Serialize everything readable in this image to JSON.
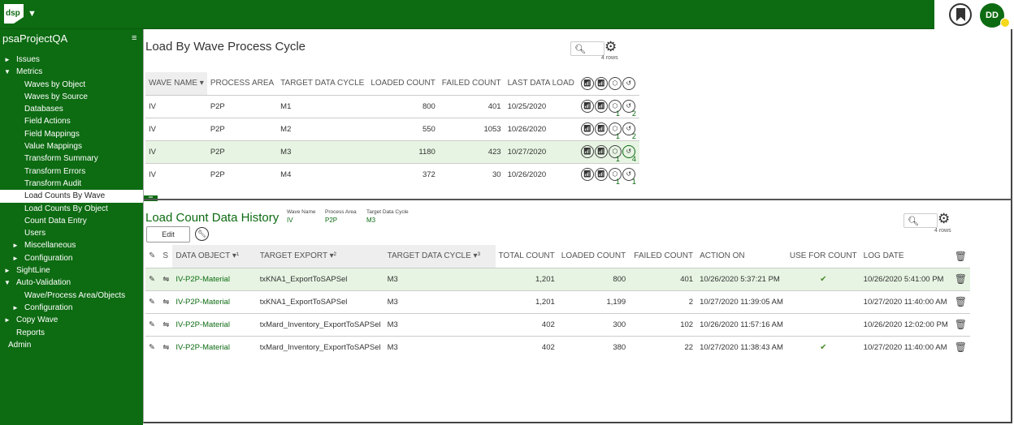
{
  "app": {
    "logo_text": "dsp",
    "user_initials": "DD"
  },
  "sidebar": {
    "project": "psaProjectQA",
    "items": [
      {
        "label": "Issues",
        "indent": 0,
        "arrow": "►"
      },
      {
        "label": "Metrics",
        "indent": 0,
        "arrow": "▼"
      },
      {
        "label": "Waves by Object",
        "indent": 2,
        "arrow": ""
      },
      {
        "label": "Waves by Source",
        "indent": 2,
        "arrow": ""
      },
      {
        "label": "Databases",
        "indent": 2,
        "arrow": ""
      },
      {
        "label": "Field Actions",
        "indent": 2,
        "arrow": ""
      },
      {
        "label": "Field Mappings",
        "indent": 2,
        "arrow": ""
      },
      {
        "label": "Value Mappings",
        "indent": 2,
        "arrow": ""
      },
      {
        "label": "Transform Summary",
        "indent": 2,
        "arrow": ""
      },
      {
        "label": "Transform Errors",
        "indent": 2,
        "arrow": ""
      },
      {
        "label": "Transform Audit",
        "indent": 2,
        "arrow": ""
      },
      {
        "label": "Load Counts By Wave",
        "indent": 2,
        "arrow": "",
        "active": true
      },
      {
        "label": "Load Counts By Object",
        "indent": 2,
        "arrow": ""
      },
      {
        "label": "Count Data Entry",
        "indent": 2,
        "arrow": ""
      },
      {
        "label": "Users",
        "indent": 2,
        "arrow": ""
      },
      {
        "label": "Miscellaneous",
        "indent": 1,
        "arrow": "►"
      },
      {
        "label": "Configuration",
        "indent": 1,
        "arrow": "►"
      },
      {
        "label": "SightLine",
        "indent": 0,
        "arrow": "►"
      },
      {
        "label": "Auto-Validation",
        "indent": 0,
        "arrow": "▼"
      },
      {
        "label": "Wave/Process Area/Objects",
        "indent": 2,
        "arrow": ""
      },
      {
        "label": "Configuration",
        "indent": 1,
        "arrow": "►"
      },
      {
        "label": "Copy Wave",
        "indent": 0,
        "arrow": "►"
      },
      {
        "label": "Reports",
        "indent": 0,
        "arrow": ""
      },
      {
        "label": "Admin",
        "indent": -1,
        "arrow": ""
      }
    ]
  },
  "top_panel": {
    "title": "Load By Wave Process Cycle",
    "rows_label": "4 rows",
    "columns": [
      "WAVE NAME ▾",
      "PROCESS AREA",
      "TARGET DATA CYCLE",
      "LOADED COUNT",
      "FAILED COUNT",
      "LAST DATA LOAD"
    ],
    "rows": [
      {
        "wave": "IV",
        "area": "P2P",
        "cycle": "M1",
        "loaded": "800",
        "failed": "401",
        "last": "10/25/2020",
        "c1": "1",
        "c2": "2"
      },
      {
        "wave": "IV",
        "area": "P2P",
        "cycle": "M2",
        "loaded": "550",
        "failed": "1053",
        "last": "10/26/2020",
        "c1": "1",
        "c2": "2"
      },
      {
        "wave": "IV",
        "area": "P2P",
        "cycle": "M3",
        "loaded": "1180",
        "failed": "423",
        "last": "10/27/2020",
        "c1": "1",
        "c2": "4"
      },
      {
        "wave": "IV",
        "area": "P2P",
        "cycle": "M4",
        "loaded": "372",
        "failed": "30",
        "last": "10/26/2020",
        "c1": "1",
        "c2": "1"
      }
    ]
  },
  "bottom_panel": {
    "title": "Load Count Data History",
    "wave_name_label": "Wave Name",
    "wave_name": "IV",
    "process_area_label": "Process Area",
    "process_area": "P2P",
    "cycle_label": "Target Data Cycle",
    "cycle": "M3",
    "edit_label": "Edit",
    "rows_label": "4 rows",
    "columns": [
      "S",
      "DATA OBJECT ▾¹",
      "TARGET EXPORT ▾²",
      "TARGET DATA CYCLE ▾³",
      "TOTAL COUNT",
      "LOADED COUNT",
      "FAILED COUNT",
      "ACTION ON",
      "USE FOR COUNT",
      "LOG DATE"
    ],
    "rows": [
      {
        "obj": "IV-P2P-Material",
        "export": "txKNA1_ExportToSAPSel",
        "cycle": "M3",
        "total": "1,201",
        "loaded": "800",
        "failed": "401",
        "action": "10/26/2020 5:37:21 PM",
        "use": "✔",
        "log": "10/26/2020 5:41:00 PM"
      },
      {
        "obj": "IV-P2P-Material",
        "export": "txKNA1_ExportToSAPSel",
        "cycle": "M3",
        "total": "1,201",
        "loaded": "1,199",
        "failed": "2",
        "action": "10/27/2020 11:39:05 AM",
        "use": "",
        "log": "10/27/2020 11:40:00 AM"
      },
      {
        "obj": "IV-P2P-Material",
        "export": "txMard_Inventory_ExportToSAPSel",
        "cycle": "M3",
        "total": "402",
        "loaded": "300",
        "failed": "102",
        "action": "10/26/2020 11:57:16 AM",
        "use": "",
        "log": "10/26/2020 12:02:00 PM"
      },
      {
        "obj": "IV-P2P-Material",
        "export": "txMard_Inventory_ExportToSAPSel",
        "cycle": "M3",
        "total": "402",
        "loaded": "380",
        "failed": "22",
        "action": "10/27/2020 11:38:43 AM",
        "use": "✔",
        "log": "10/27/2020 11:40:00 AM"
      }
    ]
  }
}
